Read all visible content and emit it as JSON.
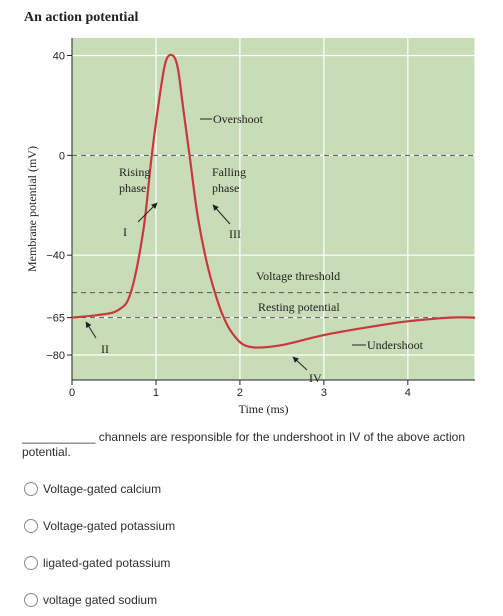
{
  "figure": {
    "title": "An action potential",
    "ylabel": "Membrane potential (mV)",
    "xlabel": "Time (ms)",
    "y_ticks": [
      "40",
      "0",
      "−40",
      "−65",
      "−80"
    ],
    "x_ticks": [
      "0",
      "1",
      "2",
      "3",
      "4"
    ],
    "labels": {
      "rising": [
        "Rising",
        "phase"
      ],
      "falling": [
        "Falling",
        "phase"
      ],
      "overshoot": "Overshoot",
      "voltage_threshold": "Voltage threshold",
      "resting_potential": "Resting potential",
      "undershoot": "Undershoot",
      "I": "I",
      "II": "II",
      "III": "III",
      "IV": "IV"
    },
    "colors": {
      "plot_bg": "#c8dcb8",
      "curve": "#c8383d",
      "grid": "#ffffff"
    }
  },
  "chart_data": {
    "type": "line",
    "xlabel": "Time (ms)",
    "ylabel": "Membrane potential (mV)",
    "xlim": [
      0,
      4.8
    ],
    "ylim": [
      -90,
      47
    ],
    "x_ticks": [
      0,
      1,
      2,
      3,
      4
    ],
    "y_ticks": [
      40,
      0,
      -40,
      -65,
      -80
    ],
    "reference_lines": [
      {
        "label": "Resting potential",
        "y": -65
      },
      {
        "label": "Voltage threshold",
        "y": -55
      }
    ],
    "series": [
      {
        "x": [
          0,
          0.3,
          0.55,
          0.7,
          0.85,
          0.95,
          1.05,
          1.12,
          1.2,
          1.26,
          1.32,
          1.4,
          1.5,
          1.62,
          1.75,
          1.85,
          1.95,
          2.05,
          2.2,
          2.5,
          3.0,
          3.5,
          4.0,
          4.5,
          4.8
        ],
        "y": [
          -65,
          -64,
          -62,
          -55,
          -30,
          0,
          25,
          38,
          40,
          35,
          20,
          0,
          -25,
          -45,
          -60,
          -68,
          -73,
          -76,
          -77,
          -76,
          -72,
          -69,
          -66.5,
          -65,
          -65
        ]
      }
    ]
  },
  "question": {
    "text": "___________ channels are responsible for the undershoot in IV of the above action potential."
  },
  "options": [
    "Voltage-gated calcium",
    "Voltage-gated potassium",
    "ligated-gated potassium",
    "voltage gated sodium"
  ]
}
